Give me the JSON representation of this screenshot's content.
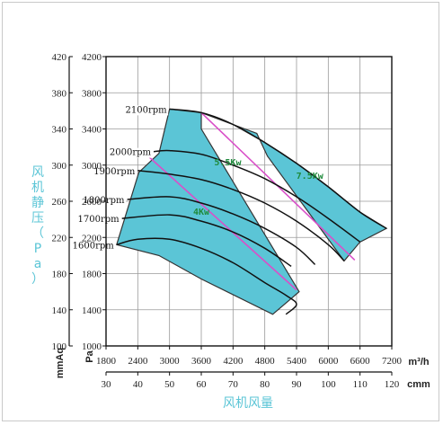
{
  "chart_data": {
    "type": "line",
    "title": "",
    "xlabel": "风机风量",
    "ylabel": "风机静压（Pa）",
    "x_units": [
      "m³/h",
      "cmm"
    ],
    "y_units": [
      "mmAq",
      "Pa"
    ],
    "x_ticks_m3h": [
      1800,
      2400,
      3000,
      3600,
      4200,
      4800,
      5400,
      6000,
      6600,
      7200
    ],
    "x_ticks_cmm": [
      30,
      40,
      50,
      60,
      70,
      80,
      90,
      100,
      110,
      120
    ],
    "y_ticks_mmaq": [
      100,
      140,
      180,
      220,
      260,
      300,
      340,
      380,
      420
    ],
    "y_ticks_pa": [
      1000,
      1400,
      1800,
      2200,
      2600,
      3000,
      3400,
      3800,
      4200
    ],
    "xlim": [
      1800,
      7200
    ],
    "ylim": [
      1000,
      4200
    ],
    "grid": true,
    "band_color": "#5bc5d6",
    "boundary_color": "#d94fc8",
    "series": [
      {
        "name": "2100rpm",
        "label": "2100rpm",
        "points": [
          [
            3000,
            3620
          ],
          [
            3600,
            3580
          ],
          [
            4200,
            3450
          ],
          [
            4800,
            3250
          ],
          [
            5400,
            3020
          ],
          [
            6000,
            2760
          ],
          [
            6600,
            2480
          ],
          [
            7100,
            2300
          ]
        ]
      },
      {
        "name": "2000rpm",
        "label": "2000rpm",
        "points": [
          [
            2700,
            3150
          ],
          [
            3000,
            3160
          ],
          [
            3600,
            3120
          ],
          [
            4200,
            3000
          ],
          [
            4800,
            2850
          ],
          [
            5400,
            2650
          ],
          [
            6000,
            2410
          ],
          [
            6600,
            2150
          ]
        ]
      },
      {
        "name": "1900rpm",
        "label": "1900rpm",
        "points": [
          [
            2400,
            2940
          ],
          [
            3000,
            2900
          ],
          [
            3600,
            2840
          ],
          [
            4200,
            2730
          ],
          [
            4800,
            2580
          ],
          [
            5400,
            2380
          ],
          [
            6000,
            2120
          ],
          [
            6300,
            1940
          ]
        ]
      },
      {
        "name": "1800rpm",
        "label": "1800rpm",
        "points": [
          [
            2200,
            2620
          ],
          [
            3000,
            2650
          ],
          [
            3600,
            2580
          ],
          [
            4200,
            2460
          ],
          [
            4800,
            2300
          ],
          [
            5400,
            2090
          ],
          [
            5750,
            1900
          ]
        ]
      },
      {
        "name": "1700rpm",
        "label": "1700rpm",
        "points": [
          [
            2100,
            2410
          ],
          [
            3000,
            2450
          ],
          [
            3600,
            2380
          ],
          [
            4200,
            2260
          ],
          [
            4800,
            2080
          ],
          [
            5300,
            1880
          ]
        ]
      },
      {
        "name": "1600rpm",
        "label": "1600rpm",
        "points": [
          [
            2000,
            2120
          ],
          [
            2400,
            2180
          ],
          [
            3000,
            2180
          ],
          [
            3600,
            2080
          ],
          [
            4200,
            1920
          ],
          [
            4800,
            1700
          ],
          [
            5200,
            1560
          ],
          [
            5400,
            1460
          ],
          [
            5200,
            1350
          ]
        ]
      }
    ],
    "power_labels": [
      {
        "label": "4Kw",
        "at": [
          3600,
          2450
        ]
      },
      {
        "label": "5.5Kw",
        "at": [
          4100,
          3000
        ]
      },
      {
        "label": "7.5Kw",
        "at": [
          5650,
          2850
        ]
      }
    ],
    "bands": [
      {
        "name": "4Kw",
        "outline": [
          [
            2000,
            2120
          ],
          [
            2420,
            2920
          ],
          [
            2800,
            3130
          ],
          [
            3000,
            3620
          ],
          [
            3600,
            3580
          ],
          [
            3600,
            3400
          ],
          [
            5450,
            1600
          ],
          [
            5350,
            1550
          ],
          [
            4950,
            1350
          ],
          [
            3600,
            1740
          ],
          [
            2800,
            2000
          ],
          [
            2000,
            2120
          ]
        ]
      },
      {
        "name": "7.5Kw",
        "outline": [
          [
            3600,
            3580
          ],
          [
            4200,
            3450
          ],
          [
            4800,
            3250
          ],
          [
            5400,
            3020
          ],
          [
            6000,
            2760
          ],
          [
            6600,
            2480
          ],
          [
            7100,
            2300
          ],
          [
            6600,
            2150
          ],
          [
            6300,
            1940
          ],
          [
            4850,
            3100
          ],
          [
            4650,
            3350
          ],
          [
            3600,
            3580
          ]
        ]
      }
    ],
    "boundaries": [
      {
        "name": "4Kw-5.5Kw",
        "points": [
          [
            2480,
            3160
          ],
          [
            5400,
            1620
          ]
        ]
      },
      {
        "name": "5.5Kw-7.5Kw",
        "points": [
          [
            3600,
            3580
          ],
          [
            6500,
            1950
          ]
        ]
      }
    ]
  }
}
